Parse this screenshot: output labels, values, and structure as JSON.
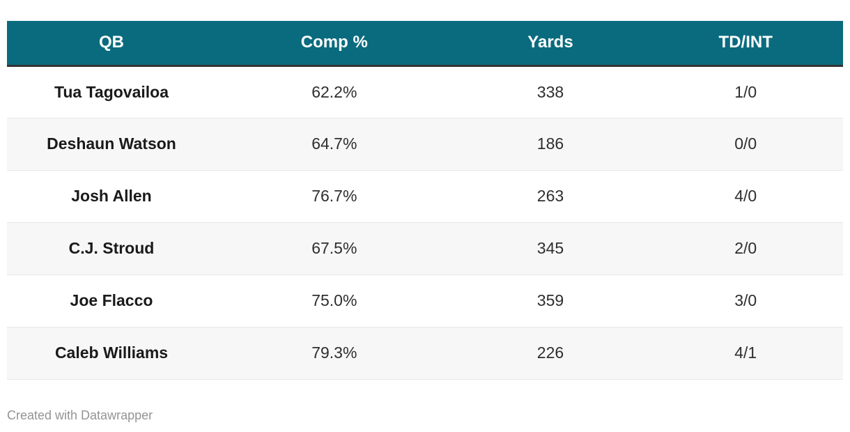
{
  "table": {
    "columns": [
      {
        "label": "QB"
      },
      {
        "label": "Comp %"
      },
      {
        "label": "Yards"
      },
      {
        "label": "TD/INT"
      }
    ],
    "rows": [
      {
        "qb": "Tua Tagovailoa",
        "comp_pct": "62.2%",
        "yards": "338",
        "td_int": "1/0"
      },
      {
        "qb": "Deshaun Watson",
        "comp_pct": "64.7%",
        "yards": "186",
        "td_int": "0/0"
      },
      {
        "qb": "Josh Allen",
        "comp_pct": "76.7%",
        "yards": "263",
        "td_int": "4/0"
      },
      {
        "qb": "C.J. Stroud",
        "comp_pct": "67.5%",
        "yards": "345",
        "td_int": "2/0"
      },
      {
        "qb": "Joe Flacco",
        "comp_pct": "75.0%",
        "yards": "359",
        "td_int": "3/0"
      },
      {
        "qb": "Caleb Williams",
        "comp_pct": "79.3%",
        "yards": "226",
        "td_int": "4/1"
      }
    ]
  },
  "footer": {
    "credit": "Created with Datawrapper"
  },
  "colors": {
    "header_bg": "#0a6b7e",
    "header_text": "#ffffff",
    "header_border": "#333333",
    "row_alt_bg": "#f7f7f7",
    "row_border": "#e7e7e7",
    "name_text": "#1a1a1a",
    "value_text": "#2e2e2e",
    "credit_text": "#949494"
  },
  "chart_data": {
    "type": "table",
    "columns": [
      "QB",
      "Comp %",
      "Yards",
      "TD/INT"
    ],
    "rows": [
      [
        "Tua Tagovailoa",
        "62.2%",
        "338",
        "1/0"
      ],
      [
        "Deshaun Watson",
        "64.7%",
        "186",
        "0/0"
      ],
      [
        "Josh Allen",
        "76.7%",
        "263",
        "4/0"
      ],
      [
        "C.J. Stroud",
        "67.5%",
        "345",
        "2/0"
      ],
      [
        "Joe Flacco",
        "75.0%",
        "359",
        "3/0"
      ],
      [
        "Caleb Williams",
        "79.3%",
        "226",
        "4/1"
      ]
    ],
    "title": "",
    "legend": "none",
    "notes": "zebra-striped table, header teal, QB column bold"
  }
}
